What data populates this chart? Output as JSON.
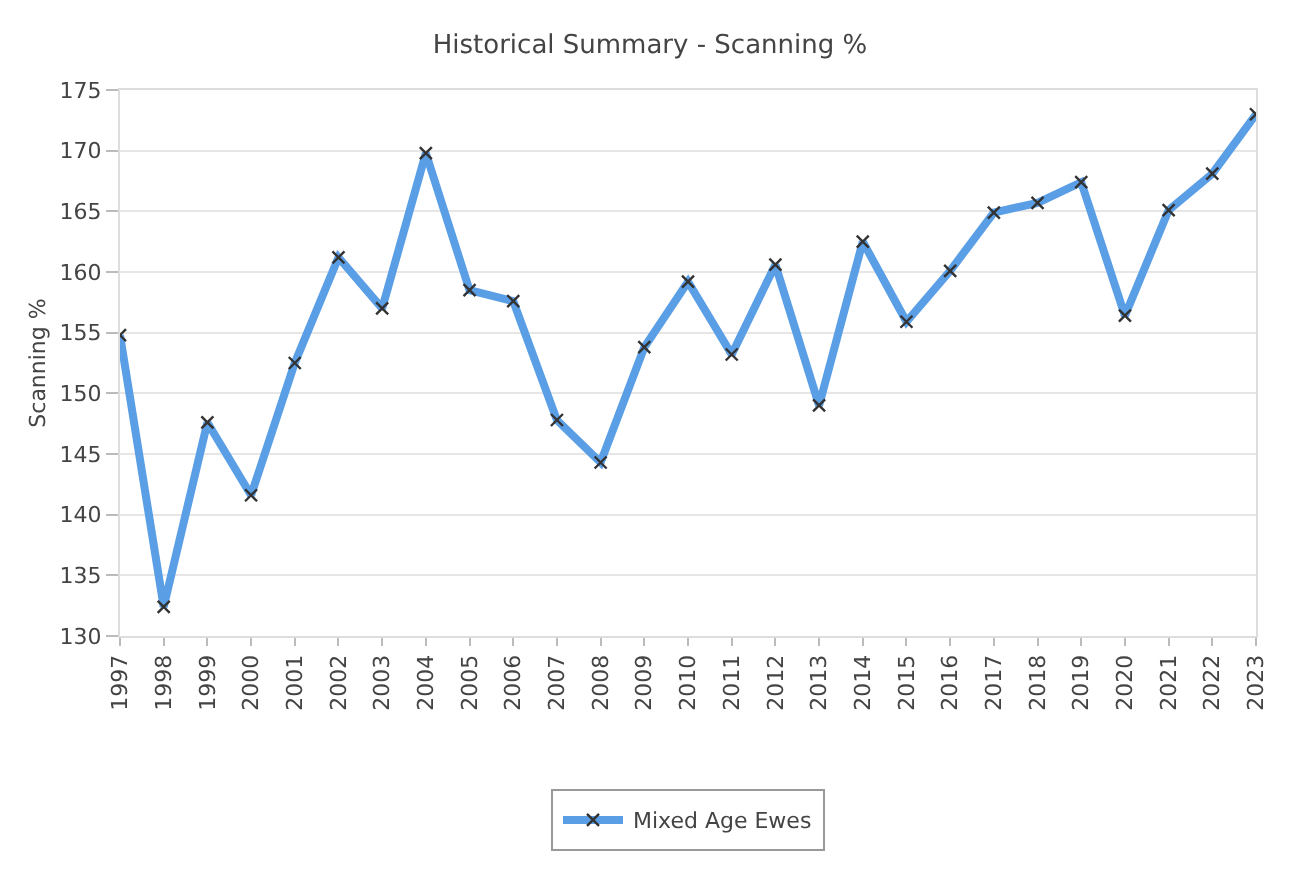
{
  "chart_data": {
    "type": "line",
    "title": "Historical Summary - Scanning %",
    "ylabel": "Scanning %",
    "categories": [
      "1997",
      "1998",
      "1999",
      "2000",
      "2001",
      "2002",
      "2003",
      "2004",
      "2005",
      "2006",
      "2007",
      "2008",
      "2009",
      "2010",
      "2011",
      "2012",
      "2013",
      "2014",
      "2015",
      "2016",
      "2017",
      "2018",
      "2019",
      "2020",
      "2021",
      "2022",
      "2023"
    ],
    "series": [
      {
        "name": "Mixed Age Ewes",
        "color": "#5a9ee6",
        "values": [
          154.8,
          132.4,
          147.6,
          141.6,
          152.5,
          161.2,
          157.0,
          169.8,
          158.5,
          157.6,
          147.8,
          144.3,
          153.8,
          159.2,
          153.2,
          160.6,
          149.0,
          162.5,
          155.9,
          160.1,
          164.9,
          165.7,
          167.4,
          156.4,
          165.1,
          168.1,
          173.0
        ]
      }
    ],
    "ylim": [
      130,
      175
    ],
    "yticks": [
      130,
      135,
      140,
      145,
      150,
      155,
      160,
      165,
      170,
      175
    ],
    "grid": "y",
    "legend": "bottom",
    "marker": "cross",
    "line_style": "solid"
  }
}
